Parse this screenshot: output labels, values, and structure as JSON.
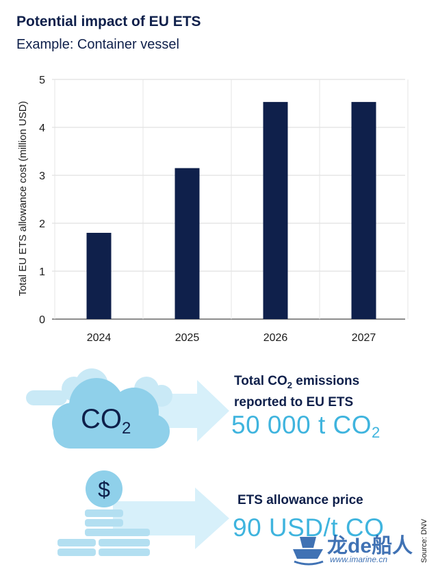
{
  "title": "Potential impact of EU ETS",
  "subtitle": "Example: Container vessel",
  "chart_data": {
    "type": "bar",
    "categories": [
      "2024",
      "2025",
      "2026",
      "2027"
    ],
    "values": [
      1.8,
      3.15,
      4.53,
      4.53
    ],
    "ylabel": "Total EU ETS allowance cost (million USD)",
    "xlabel": "",
    "ylim": [
      0,
      5
    ],
    "yticks": [
      0,
      1,
      2,
      3,
      4,
      5
    ],
    "grid": true,
    "bar_color": "#0f204b"
  },
  "emissions": {
    "heading_line1": "Total CO",
    "heading_sub": "2",
    "heading_line1_end": " emissions",
    "heading_line2": "reported to EU ETS",
    "value": "50 000 t CO",
    "value_sub": "2",
    "cloud_label": "CO",
    "cloud_label_sub": "2",
    "icon": "cloud-icon"
  },
  "price": {
    "heading": "ETS allowance price",
    "value": "90 USD/t CO",
    "coin_symbol": "$",
    "icon": "coin-stack-icon"
  },
  "source": "Source: DNV",
  "watermark": {
    "text": "龙de船人",
    "url": "www.imarine.cn"
  },
  "colors": {
    "navy": "#0f204b",
    "accent": "#3fb4de",
    "light_blue": "#8fd0ea",
    "arrow": "#d7f0fa"
  }
}
